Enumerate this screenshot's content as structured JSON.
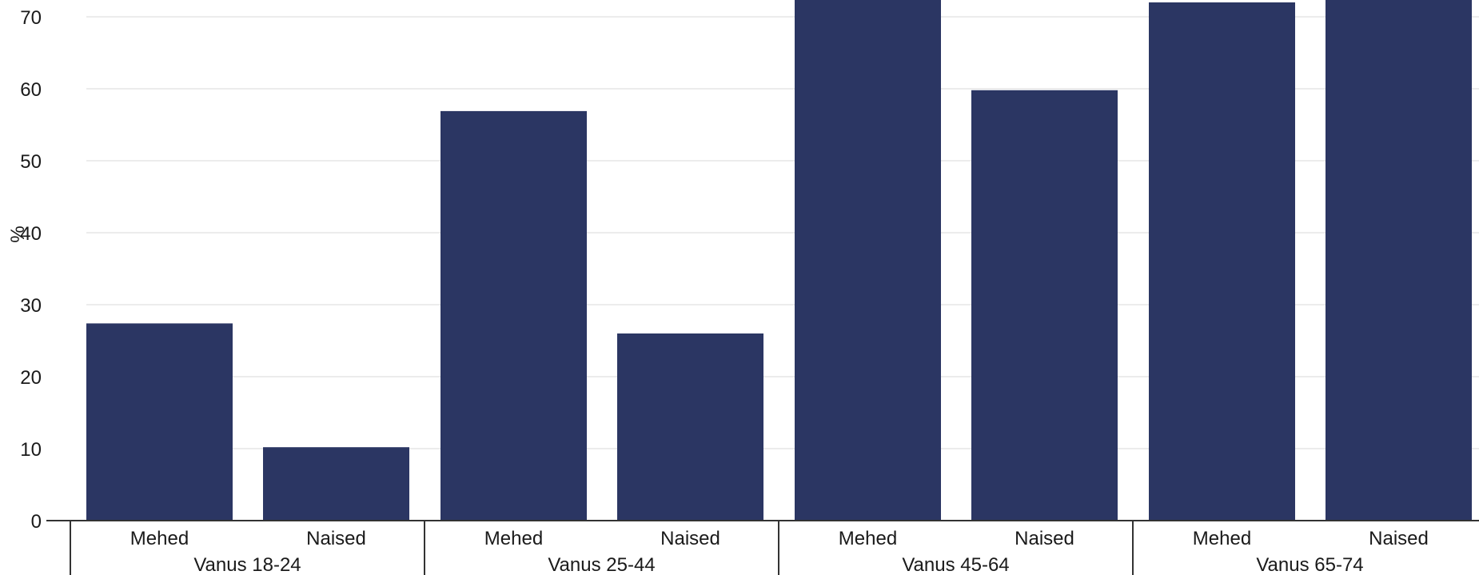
{
  "chart_data": {
    "type": "bar",
    "ylabel": "%",
    "ylim": [
      0,
      72
    ],
    "yticks": [
      0,
      10,
      20,
      30,
      40,
      50,
      60,
      70
    ],
    "grid": true,
    "bar_color": "#2b3663",
    "groups": [
      {
        "label": "Vanus 18-24",
        "bars": [
          {
            "category": "Mehed",
            "value": 27.4
          },
          {
            "category": "Naised",
            "value": 10.2
          }
        ]
      },
      {
        "label": "Vanus 25-44",
        "bars": [
          {
            "category": "Mehed",
            "value": 56.9
          },
          {
            "category": "Naised",
            "value": 26.0
          }
        ]
      },
      {
        "label": "Vanus 45-64",
        "bars": [
          {
            "category": "Mehed",
            "value": 73.5
          },
          {
            "category": "Naised",
            "value": 59.8
          }
        ]
      },
      {
        "label": "Vanus 65-74",
        "bars": [
          {
            "category": "Mehed",
            "value": 72.0
          },
          {
            "category": "Naised",
            "value": 73.5
          }
        ]
      }
    ]
  }
}
